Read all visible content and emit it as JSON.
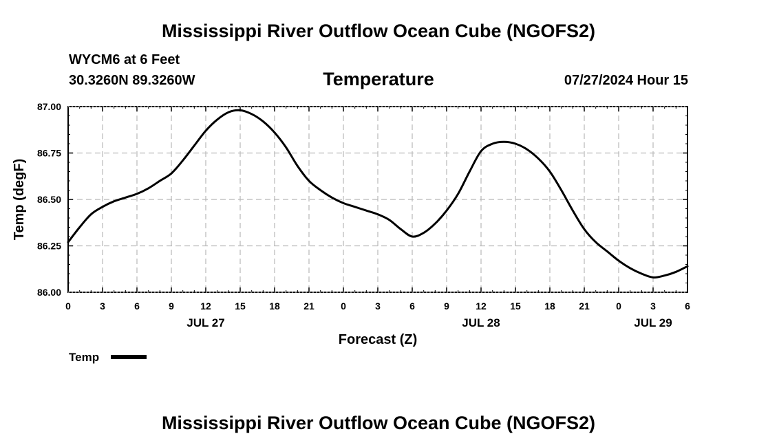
{
  "header": {
    "title": "Mississippi River Outflow Ocean Cube (NGOFS2)",
    "station": "WYCM6 at 6 Feet",
    "coords": "30.3260N  89.3260W",
    "variable": "Temperature",
    "datetime": "07/27/2024 Hour 15"
  },
  "footer": {
    "title": "Mississippi River Outflow Ocean Cube (NGOFS2)"
  },
  "chart_data": {
    "type": "line",
    "title": "Temperature",
    "xlabel": "Forecast (Z)",
    "ylabel": "Temp (degF)",
    "xlim": [
      0,
      54
    ],
    "ylim": [
      86.0,
      87.0
    ],
    "grid": true,
    "x_tick_values": [
      0,
      3,
      6,
      9,
      12,
      15,
      18,
      21,
      24,
      27,
      30,
      33,
      36,
      39,
      42,
      45,
      48,
      51,
      54
    ],
    "x_tick_labels": [
      "0",
      "3",
      "6",
      "9",
      "12",
      "15",
      "18",
      "21",
      "0",
      "3",
      "6",
      "9",
      "12",
      "15",
      "18",
      "21",
      "0",
      "3",
      "6"
    ],
    "date_labels": [
      {
        "x": 12,
        "label": "JUL 27"
      },
      {
        "x": 36,
        "label": "JUL 28"
      },
      {
        "x": 51,
        "label": "JUL 29"
      }
    ],
    "y_ticks": [
      86.0,
      86.25,
      86.5,
      86.75,
      87.0
    ],
    "y_tick_labels": [
      "86.00",
      "86.25",
      "86.50",
      "86.75",
      "87.00"
    ],
    "legend": {
      "label": "Temp",
      "position": "bottom-left"
    },
    "series": [
      {
        "name": "Temp",
        "color": "#000000",
        "x": [
          0,
          1,
          2,
          3,
          4,
          5,
          6,
          7,
          8,
          9,
          10,
          11,
          12,
          13,
          14,
          15,
          16,
          17,
          18,
          19,
          20,
          21,
          22,
          23,
          24,
          25,
          26,
          27,
          28,
          29,
          30,
          31,
          32,
          33,
          34,
          35,
          36,
          37,
          38,
          39,
          40,
          41,
          42,
          43,
          44,
          45,
          46,
          47,
          48,
          49,
          50,
          51,
          52,
          53,
          54
        ],
        "values": [
          86.27,
          86.35,
          86.42,
          86.46,
          86.49,
          86.51,
          86.53,
          86.56,
          86.6,
          86.64,
          86.71,
          86.79,
          86.87,
          86.93,
          86.97,
          86.98,
          86.96,
          86.92,
          86.86,
          86.78,
          86.68,
          86.6,
          86.55,
          86.51,
          86.48,
          86.46,
          86.44,
          86.42,
          86.39,
          86.34,
          86.3,
          86.32,
          86.37,
          86.44,
          86.53,
          86.65,
          86.76,
          86.8,
          86.81,
          86.8,
          86.77,
          86.72,
          86.65,
          86.55,
          86.44,
          86.34,
          86.27,
          86.22,
          86.17,
          86.13,
          86.1,
          86.08,
          86.09,
          86.11,
          86.14
        ]
      }
    ]
  }
}
